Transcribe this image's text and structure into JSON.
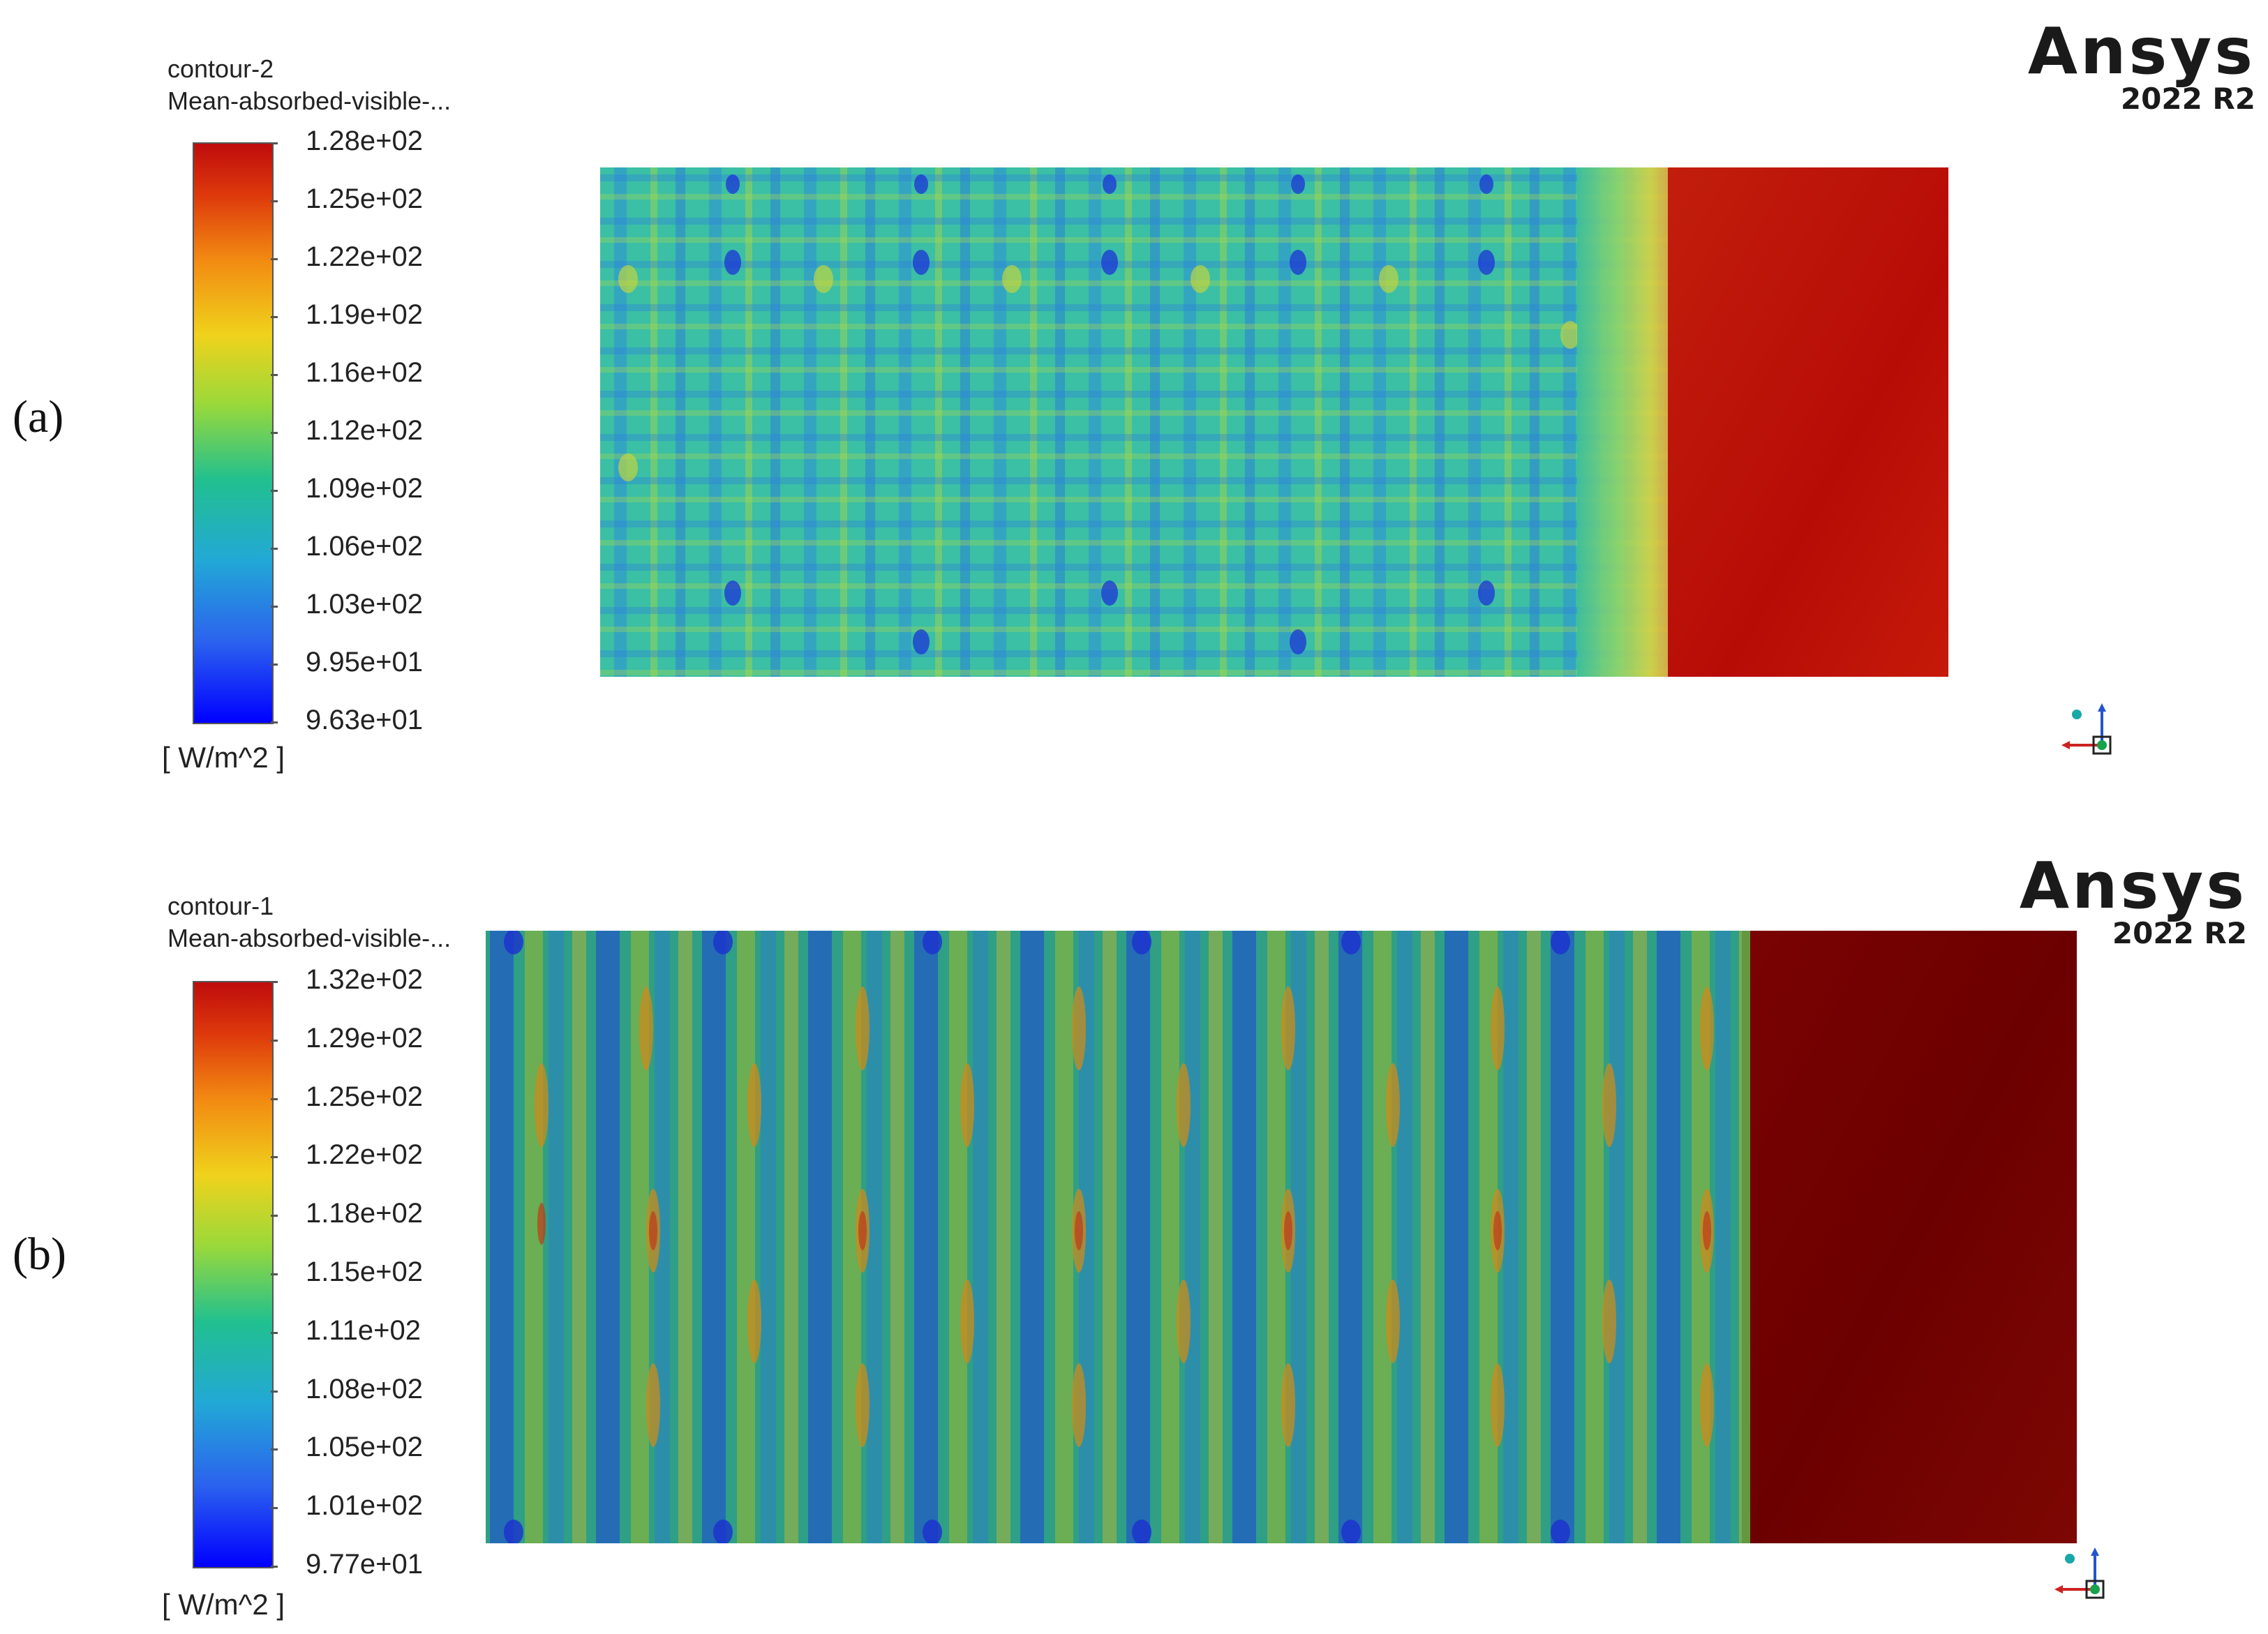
{
  "panels": [
    {
      "label": "(a)",
      "legend": {
        "name": "contour-2",
        "variable": "Mean-absorbed-visible-...",
        "ticks": [
          "1.28e+02",
          "1.25e+02",
          "1.22e+02",
          "1.19e+02",
          "1.16e+02",
          "1.12e+02",
          "1.09e+02",
          "1.06e+02",
          "1.03e+02",
          "9.95e+01",
          "9.63e+01"
        ],
        "unit": "[ W/m^2 ]"
      },
      "logo": {
        "name": "Ansys",
        "version": "2022 R2"
      }
    },
    {
      "label": "(b)",
      "legend": {
        "name": "contour-1",
        "variable": "Mean-absorbed-visible-...",
        "ticks": [
          "1.32e+02",
          "1.29e+02",
          "1.25e+02",
          "1.22e+02",
          "1.18e+02",
          "1.15e+02",
          "1.11e+02",
          "1.08e+02",
          "1.05e+02",
          "1.01e+02",
          "9.77e+01"
        ],
        "unit": "[ W/m^2 ]"
      },
      "logo": {
        "name": "Ansys",
        "version": "2022 R2"
      }
    }
  ],
  "colors": {
    "max": "#be0c0c",
    "min": "#0000ff",
    "contour_a_base": "#3fbf9a",
    "contour_a_hot": "#b30a05",
    "contour_b_base": "#2f9f7a",
    "contour_b_hot": "#6e0000"
  },
  "icons": [
    "ansys-logo",
    "axis-triad-icon"
  ]
}
